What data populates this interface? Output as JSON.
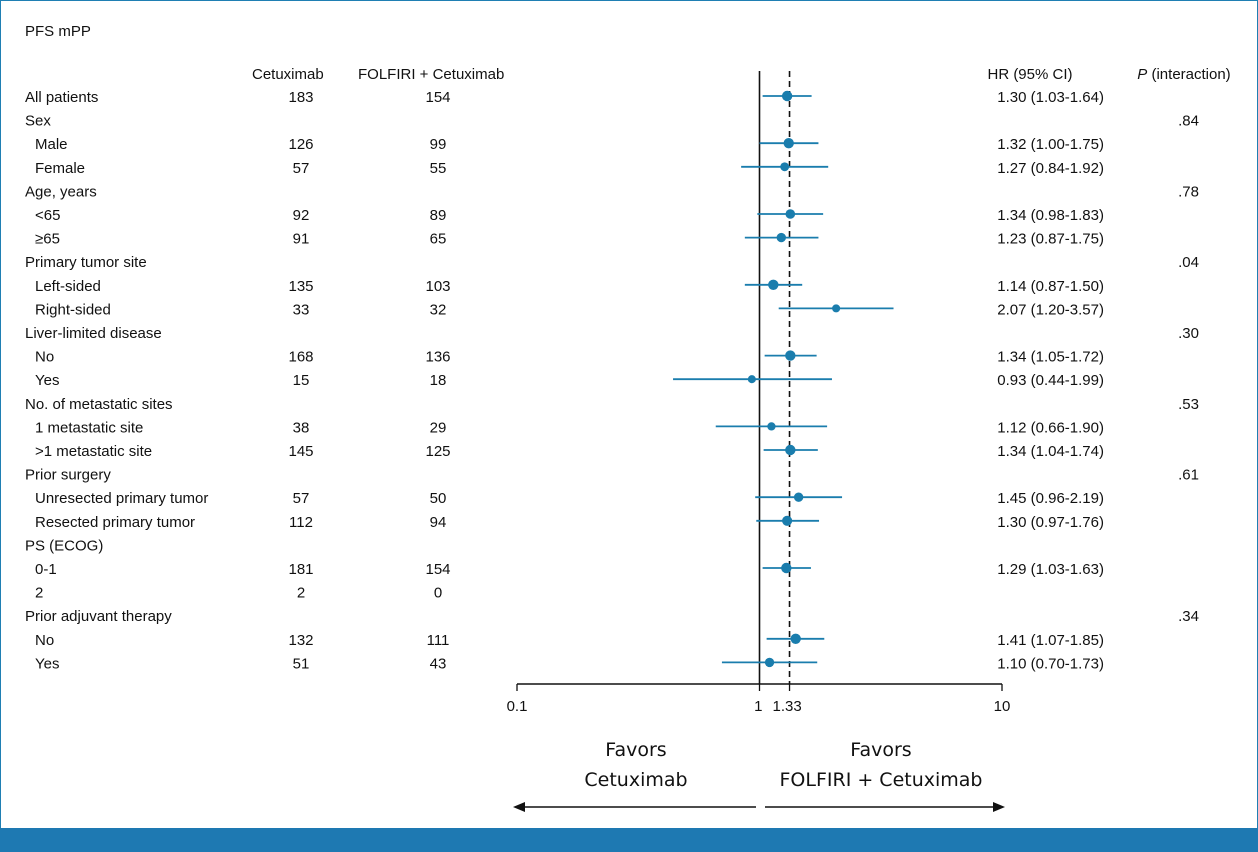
{
  "panel_title": "PFS mPP",
  "headers": {
    "arm1": "Cetuximab",
    "arm2": "FOLFIRI + Cetuximab",
    "hr": "HR (95% CI)",
    "p_italic": "P",
    "p_rest": " (interaction)"
  },
  "colors": {
    "marker": "#1a7dad",
    "band": "#1e79b2",
    "border": "#1f7fb3",
    "text": "#111111"
  },
  "chart_data": {
    "type": "forest",
    "x_scale": "log",
    "xlim": [
      0.1,
      10
    ],
    "x_ticks": [
      {
        "value": 0.1,
        "label": "0.1"
      },
      {
        "value": 1,
        "label": "1"
      },
      {
        "value": 1.33,
        "label": "1.33"
      },
      {
        "value": 10,
        "label": "10"
      }
    ],
    "reference_line": 1,
    "overall_line": 1.33,
    "rows": [
      {
        "label": "All patients",
        "indent": false,
        "n1": "183",
        "n2": "154",
        "hr": 1.3,
        "lo": 1.03,
        "hi": 1.64,
        "ci_text": "1.30 (1.03-1.64)",
        "p": "",
        "weight": 1.0
      },
      {
        "label": "Sex",
        "indent": false,
        "n1": "",
        "n2": "",
        "hr": null,
        "lo": null,
        "hi": null,
        "ci_text": "",
        "p": ".84",
        "weight": 0
      },
      {
        "label": "Male",
        "indent": true,
        "n1": "126",
        "n2": "99",
        "hr": 1.32,
        "lo": 1.0,
        "hi": 1.75,
        "ci_text": "1.32 (1.00-1.75)",
        "p": "",
        "weight": 1.0
      },
      {
        "label": "Female",
        "indent": true,
        "n1": "57",
        "n2": "55",
        "hr": 1.27,
        "lo": 0.84,
        "hi": 1.92,
        "ci_text": "1.27 (0.84-1.92)",
        "p": "",
        "weight": 0.7
      },
      {
        "label": "Age, years",
        "indent": false,
        "n1": "",
        "n2": "",
        "hr": null,
        "lo": null,
        "hi": null,
        "ci_text": "",
        "p": ".78",
        "weight": 0
      },
      {
        "label": "<65",
        "indent": true,
        "n1": "92",
        "n2": "89",
        "hr": 1.34,
        "lo": 0.98,
        "hi": 1.83,
        "ci_text": "1.34 (0.98-1.83)",
        "p": "",
        "weight": 0.85
      },
      {
        "label": "≥65",
        "indent": true,
        "n1": "91",
        "n2": "65",
        "hr": 1.23,
        "lo": 0.87,
        "hi": 1.75,
        "ci_text": "1.23 (0.87-1.75)",
        "p": "",
        "weight": 0.8
      },
      {
        "label": "Primary tumor site",
        "indent": false,
        "n1": "",
        "n2": "",
        "hr": null,
        "lo": null,
        "hi": null,
        "ci_text": "",
        "p": ".04",
        "weight": 0
      },
      {
        "label": "Left-sided",
        "indent": true,
        "n1": "135",
        "n2": "103",
        "hr": 1.14,
        "lo": 0.87,
        "hi": 1.5,
        "ci_text": "1.14 (0.87-1.50)",
        "p": "",
        "weight": 1.0
      },
      {
        "label": "Right-sided",
        "indent": true,
        "n1": "33",
        "n2": "32",
        "hr": 2.07,
        "lo": 1.2,
        "hi": 3.57,
        "ci_text": "2.07 (1.20-3.57)",
        "p": "",
        "weight": 0.55
      },
      {
        "label": "Liver-limited disease",
        "indent": false,
        "n1": "",
        "n2": "",
        "hr": null,
        "lo": null,
        "hi": null,
        "ci_text": "",
        "p": ".30",
        "weight": 0
      },
      {
        "label": "No",
        "indent": true,
        "n1": "168",
        "n2": "136",
        "hr": 1.34,
        "lo": 1.05,
        "hi": 1.72,
        "ci_text": "1.34 (1.05-1.72)",
        "p": "",
        "weight": 1.0
      },
      {
        "label": "Yes",
        "indent": true,
        "n1": "15",
        "n2": "18",
        "hr": 0.93,
        "lo": 0.44,
        "hi": 1.99,
        "ci_text": "0.93 (0.44-1.99)",
        "p": "",
        "weight": 0.55
      },
      {
        "label": "No. of metastatic sites",
        "indent": false,
        "n1": "",
        "n2": "",
        "hr": null,
        "lo": null,
        "hi": null,
        "ci_text": "",
        "p": ".53",
        "weight": 0
      },
      {
        "label": "1 metastatic site",
        "indent": true,
        "n1": "38",
        "n2": "29",
        "hr": 1.12,
        "lo": 0.66,
        "hi": 1.9,
        "ci_text": "1.12 (0.66-1.90)",
        "p": "",
        "weight": 0.6
      },
      {
        "label": ">1 metastatic site",
        "indent": true,
        "n1": "145",
        "n2": "125",
        "hr": 1.34,
        "lo": 1.04,
        "hi": 1.74,
        "ci_text": "1.34 (1.04-1.74)",
        "p": "",
        "weight": 1.0
      },
      {
        "label": "Prior surgery",
        "indent": false,
        "n1": "",
        "n2": "",
        "hr": null,
        "lo": null,
        "hi": null,
        "ci_text": "",
        "p": ".61",
        "weight": 0
      },
      {
        "label": "Unresected primary tumor",
        "indent": true,
        "n1": "57",
        "n2": "50",
        "hr": 1.45,
        "lo": 0.96,
        "hi": 2.19,
        "ci_text": "1.45 (0.96-2.19)",
        "p": "",
        "weight": 0.8
      },
      {
        "label": "Resected primary tumor",
        "indent": true,
        "n1": "112",
        "n2": "94",
        "hr": 1.3,
        "lo": 0.97,
        "hi": 1.76,
        "ci_text": "1.30 (0.97-1.76)",
        "p": "",
        "weight": 0.95
      },
      {
        "label": "PS (ECOG)",
        "indent": false,
        "n1": "",
        "n2": "",
        "hr": null,
        "lo": null,
        "hi": null,
        "ci_text": "",
        "p": "",
        "weight": 0
      },
      {
        "label": "0-1",
        "indent": true,
        "n1": "181",
        "n2": "154",
        "hr": 1.29,
        "lo": 1.03,
        "hi": 1.63,
        "ci_text": "1.29 (1.03-1.63)",
        "p": "",
        "weight": 1.0
      },
      {
        "label": "2",
        "indent": true,
        "n1": "2",
        "n2": "0",
        "hr": null,
        "lo": null,
        "hi": null,
        "ci_text": "",
        "p": "",
        "weight": 0
      },
      {
        "label": "Prior adjuvant therapy",
        "indent": false,
        "n1": "",
        "n2": "",
        "hr": null,
        "lo": null,
        "hi": null,
        "ci_text": "",
        "p": ".34",
        "weight": 0
      },
      {
        "label": "No",
        "indent": true,
        "n1": "132",
        "n2": "111",
        "hr": 1.41,
        "lo": 1.07,
        "hi": 1.85,
        "ci_text": "1.41 (1.07-1.85)",
        "p": "",
        "weight": 1.0
      },
      {
        "label": "Yes",
        "indent": true,
        "n1": "51",
        "n2": "43",
        "hr": 1.1,
        "lo": 0.7,
        "hi": 1.73,
        "ci_text": "1.10 (0.70-1.73)",
        "p": "",
        "weight": 0.8
      }
    ],
    "favors_left": [
      "Favors",
      "Cetuximab"
    ],
    "favors_right": [
      "Favors",
      "FOLFIRI + Cetuximab"
    ]
  }
}
